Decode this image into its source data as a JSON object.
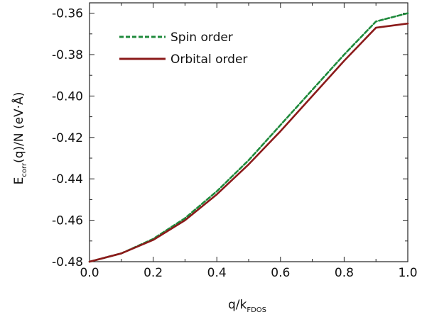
{
  "chart_data": {
    "type": "line",
    "xlabel": {
      "main": "q/k",
      "sub": "FDOS"
    },
    "ylabel": {
      "main": "E",
      "sub": "corr",
      "rest": "(q)/N   (eV·Å)"
    },
    "xlim": [
      0.0,
      1.0
    ],
    "ylim": [
      -0.48,
      -0.355
    ],
    "xticks": [
      "0.0",
      "0.2",
      "0.4",
      "0.6",
      "0.8",
      "1.0"
    ],
    "xtick_values": [
      0.0,
      0.2,
      0.4,
      0.6,
      0.8,
      1.0
    ],
    "yticks": [
      "-0.36",
      "-0.38",
      "-0.40",
      "-0.42",
      "-0.44",
      "-0.46",
      "-0.48"
    ],
    "ytick_values": [
      -0.36,
      -0.38,
      -0.4,
      -0.42,
      -0.44,
      -0.46,
      -0.48
    ],
    "legend_position": "upper-left",
    "grid": false,
    "series": [
      {
        "name": "Spin order",
        "color": "#1f8a3c",
        "style": "dashed",
        "x": [
          0.0,
          0.1,
          0.2,
          0.3,
          0.4,
          0.5,
          0.6,
          0.7,
          0.8,
          0.9,
          1.0
        ],
        "y": [
          -0.48,
          -0.476,
          -0.469,
          -0.459,
          -0.446,
          -0.431,
          -0.414,
          -0.397,
          -0.38,
          -0.364,
          -0.36
        ]
      },
      {
        "name": "Orbital order",
        "color": "#8b1a1a",
        "style": "solid",
        "x": [
          0.0,
          0.1,
          0.2,
          0.3,
          0.4,
          0.5,
          0.6,
          0.7,
          0.8,
          0.9,
          1.0
        ],
        "y": [
          -0.48,
          -0.476,
          -0.4695,
          -0.46,
          -0.4475,
          -0.433,
          -0.417,
          -0.4,
          -0.383,
          -0.367,
          -0.365
        ]
      }
    ]
  }
}
